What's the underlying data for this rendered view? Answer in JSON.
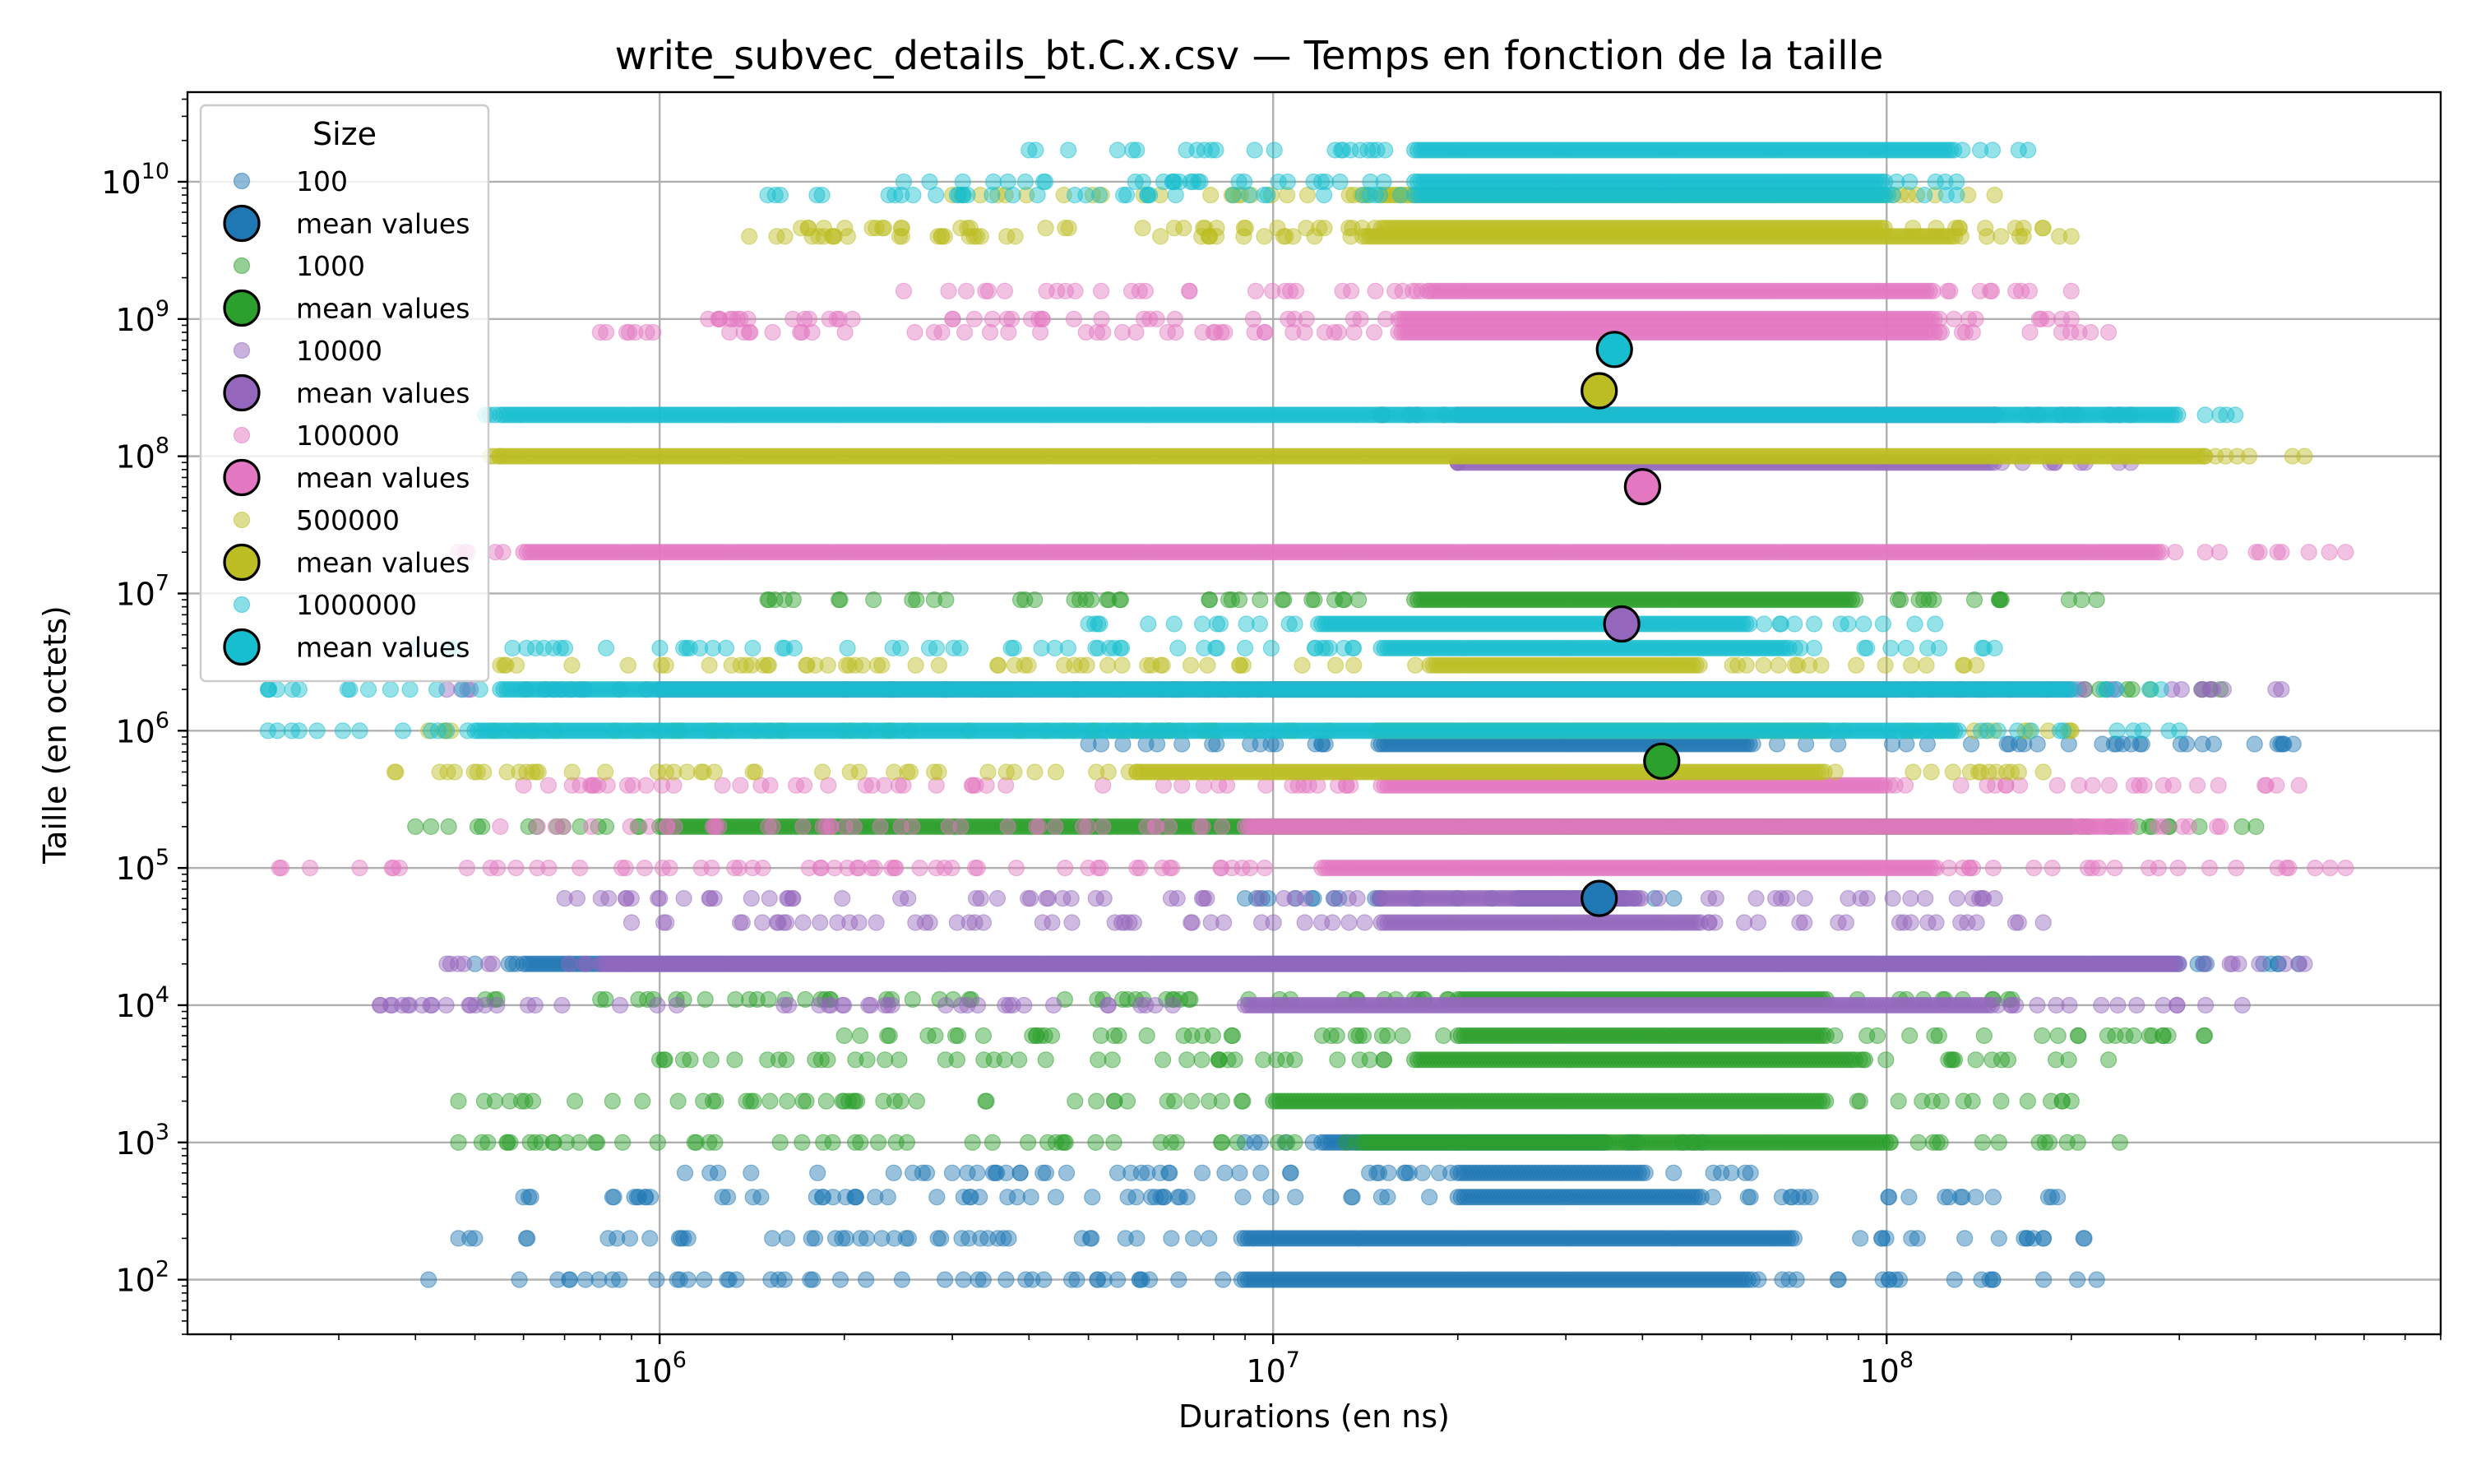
{
  "chart_data": {
    "type": "scatter",
    "title": "write_subvec_details_bt.C.x.csv — Temps en fonction de la taille",
    "xlabel": "Durations (en ns)",
    "ylabel": "Taille (en octets)",
    "xscale": "log",
    "yscale": "log",
    "xlim": [
      170000,
      800000000
    ],
    "ylim": [
      40,
      45000000000
    ],
    "grid": true,
    "x_ticks": [
      {
        "base": "10",
        "exp": "6",
        "value": 1000000
      },
      {
        "base": "10",
        "exp": "7",
        "value": 10000000
      },
      {
        "base": "10",
        "exp": "8",
        "value": 100000000
      }
    ],
    "y_ticks": [
      {
        "base": "10",
        "exp": "2",
        "value": 100
      },
      {
        "base": "10",
        "exp": "3",
        "value": 1000
      },
      {
        "base": "10",
        "exp": "4",
        "value": 10000
      },
      {
        "base": "10",
        "exp": "5",
        "value": 100000
      },
      {
        "base": "10",
        "exp": "6",
        "value": 1000000
      },
      {
        "base": "10",
        "exp": "7",
        "value": 10000000
      },
      {
        "base": "10",
        "exp": "8",
        "value": 100000000
      },
      {
        "base": "10",
        "exp": "9",
        "value": 1000000000
      },
      {
        "base": "10",
        "exp": "10",
        "value": 10000000000
      }
    ],
    "legend": {
      "title": "Size",
      "placement": "upper-left"
    },
    "series": [
      {
        "name": "100",
        "color": "#1f77b4",
        "bands": [
          {
            "y": 100,
            "x_range": [
              420000,
              220000000
            ],
            "dense_range": [
              9000000,
              60000000
            ]
          },
          {
            "y": 200,
            "x_range": [
              470000,
              210000000
            ],
            "dense_range": [
              9000000,
              70000000
            ]
          },
          {
            "y": 400,
            "x_range": [
              600000,
              190000000
            ],
            "dense_range": [
              20000000,
              50000000
            ]
          },
          {
            "y": 600,
            "x_range": [
              1100000,
              60000000
            ],
            "dense_range": [
              20000000,
              40000000
            ]
          },
          {
            "y": 1000,
            "x_range": [
              9000000,
              50000000
            ],
            "dense_range": [
              12000000,
              35000000
            ]
          },
          {
            "y": 20000,
            "x_range": [
              500000,
              470000000
            ],
            "dense_range": [
              600000,
              300000000
            ]
          },
          {
            "y": 60000,
            "x_range": [
              9000000,
              45000000
            ],
            "dense_range": [
              25000000,
              38000000
            ]
          },
          {
            "y": 800000,
            "x_range": [
              5000000,
              460000000
            ],
            "dense_range": [
              15000000,
              60000000
            ]
          }
        ],
        "mean": {
          "x": 34000000,
          "y": 60000,
          "label": "mean values"
        }
      },
      {
        "name": "1000",
        "color": "#2ca02c",
        "bands": [
          {
            "y": 1000,
            "x_range": [
              470000,
              240000000
            ],
            "dense_range": [
              14000000,
              100000000
            ]
          },
          {
            "y": 2000,
            "x_range": [
              470000,
              200000000
            ],
            "dense_range": [
              10000000,
              80000000
            ]
          },
          {
            "y": 4000,
            "x_range": [
              1000000,
              230000000
            ],
            "dense_range": [
              17000000,
              90000000
            ]
          },
          {
            "y": 6000,
            "x_range": [
              2000000,
              330000000
            ],
            "dense_range": [
              20000000,
              80000000
            ]
          },
          {
            "y": 11000,
            "x_range": [
              520000,
              160000000
            ],
            "dense_range": [
              20000000,
              80000000
            ]
          },
          {
            "y": 200000,
            "x_range": [
              400000,
              400000000
            ],
            "dense_range": [
              1000000,
              200000000
            ]
          },
          {
            "y": 2000000,
            "x_range": [
              2000000,
              350000000
            ],
            "dense_range": [
              10000000,
              100000000
            ]
          },
          {
            "y": 9000000,
            "x_range": [
              1500000,
              220000000
            ],
            "dense_range": [
              17000000,
              90000000
            ]
          }
        ],
        "mean": {
          "x": 43000000,
          "y": 600000,
          "label": "mean values"
        }
      },
      {
        "name": "10000",
        "color": "#9467bd",
        "bands": [
          {
            "y": 10000,
            "x_range": [
              350000,
              380000000
            ],
            "dense_range": [
              9000000,
              150000000
            ]
          },
          {
            "y": 20000,
            "x_range": [
              450000,
              480000000
            ],
            "dense_range": [
              800000,
              300000000
            ]
          },
          {
            "y": 40000,
            "x_range": [
              900000,
              180000000
            ],
            "dense_range": [
              15000000,
              50000000
            ]
          },
          {
            "y": 60000,
            "x_range": [
              700000,
              150000000
            ],
            "dense_range": [
              15000000,
              40000000
            ]
          },
          {
            "y": 2000000,
            "x_range": [
              450000,
              440000000
            ],
            "dense_range": [
              1000000,
              200000000
            ]
          },
          {
            "y": 90000000,
            "x_range": [
              20000000,
              250000000
            ],
            "dense_range": [
              20000000,
              150000000
            ]
          },
          {
            "y": 200000000,
            "x_range": [
              15000000,
              250000000
            ],
            "dense_range": [
              20000000,
              150000000
            ]
          }
        ],
        "mean": {
          "x": 37000000,
          "y": 6000000,
          "label": "mean values"
        }
      },
      {
        "name": "100000",
        "color": "#e377c2",
        "bands": [
          {
            "y": 100000,
            "x_range": [
              240000,
              560000000
            ],
            "dense_range": [
              12000000,
              120000000
            ]
          },
          {
            "y": 200000,
            "x_range": [
              550000,
              350000000
            ],
            "dense_range": [
              9000000,
              250000000
            ]
          },
          {
            "y": 400000,
            "x_range": [
              600000,
              470000000
            ],
            "dense_range": [
              15000000,
              100000000
            ]
          },
          {
            "y": 20000000,
            "x_range": [
              470000,
              560000000
            ],
            "dense_range": [
              600000,
              280000000
            ]
          },
          {
            "y": 800000000,
            "x_range": [
              800000,
              230000000
            ],
            "dense_range": [
              16000000,
              120000000
            ]
          },
          {
            "y": 1000000000,
            "x_range": [
              1200000,
              200000000
            ],
            "dense_range": [
              16000000,
              120000000
            ]
          },
          {
            "y": 1600000000,
            "x_range": [
              2500000,
              200000000
            ],
            "dense_range": [
              18000000,
              120000000
            ]
          }
        ],
        "mean": {
          "x": 40000000,
          "y": 60000000,
          "label": "mean values"
        }
      },
      {
        "name": "500000",
        "color": "#bcbd22",
        "bands": [
          {
            "y": 500000,
            "x_range": [
              370000,
              180000000
            ],
            "dense_range": [
              6000000,
              80000000
            ]
          },
          {
            "y": 1000000,
            "x_range": [
              420000,
              200000000
            ],
            "dense_range": [
              15000000,
              80000000
            ]
          },
          {
            "y": 3000000,
            "x_range": [
              550000,
              140000000
            ],
            "dense_range": [
              18000000,
              50000000
            ]
          },
          {
            "y": 100000000,
            "x_range": [
              530000,
              480000000
            ],
            "dense_range": [
              550000,
              330000000
            ]
          },
          {
            "y": 4000000000,
            "x_range": [
              1400000,
              200000000
            ],
            "dense_range": [
              14000000,
              130000000
            ]
          },
          {
            "y": 4600000000,
            "x_range": [
              1700000,
              180000000
            ],
            "dense_range": [
              15000000,
              100000000
            ]
          },
          {
            "y": 8000000000,
            "x_range": [
              3000000,
              150000000
            ],
            "dense_range": [
              15000000,
              100000000
            ]
          }
        ],
        "mean": {
          "x": 34000000,
          "y": 300000000,
          "label": "mean values"
        }
      },
      {
        "name": "1000000",
        "color": "#17becf",
        "bands": [
          {
            "y": 1000000,
            "x_range": [
              230000,
              300000000
            ],
            "dense_range": [
              500000,
              130000000
            ]
          },
          {
            "y": 2000000,
            "x_range": [
              230000,
              280000000
            ],
            "dense_range": [
              550000,
              200000000
            ]
          },
          {
            "y": 4000000,
            "x_range": [
              400000,
              150000000
            ],
            "dense_range": [
              15000000,
              70000000
            ]
          },
          {
            "y": 6000000,
            "x_range": [
              5000000,
              120000000
            ],
            "dense_range": [
              12000000,
              60000000
            ]
          },
          {
            "y": 200000000,
            "x_range": [
              520000,
              370000000
            ],
            "dense_range": [
              550000,
              300000000
            ]
          },
          {
            "y": 8000000000,
            "x_range": [
              1500000,
              130000000
            ],
            "dense_range": [
              17000000,
              100000000
            ]
          },
          {
            "y": 10000000000,
            "x_range": [
              2500000,
              130000000
            ],
            "dense_range": [
              17000000,
              100000000
            ]
          },
          {
            "y": 17000000000,
            "x_range": [
              4000000,
              170000000
            ],
            "dense_range": [
              17000000,
              130000000
            ]
          }
        ],
        "mean": {
          "x": 36000000,
          "y": 600000000,
          "label": "mean values"
        }
      }
    ]
  }
}
